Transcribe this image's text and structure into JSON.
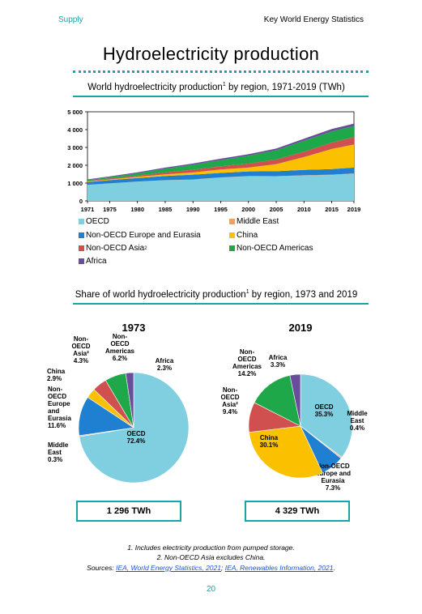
{
  "header": {
    "left": "Supply",
    "right": "Key World Energy Statistics"
  },
  "page_title": "Hydroelectricity production",
  "area_subtitle": {
    "main": "World hydroelectricity production",
    "sup": "1",
    "rest": " by region, 1971-2019 (TWh)"
  },
  "pie_subtitle": {
    "main": "Share of world hydroelectricity production",
    "sup": "1",
    "rest": " by region, 1973 and 2019"
  },
  "colors": {
    "teal": "#1aa3a8",
    "oecd": "#7fcfe0",
    "middle_east": "#f0a060",
    "non_oecd_europe": "#1f7fd0",
    "china": "#fbc000",
    "non_oecd_asia": "#d05050",
    "non_oecd_americas": "#1fa84a",
    "africa": "#6a4c9c"
  },
  "chart_data": [
    {
      "type": "area",
      "title": "World hydroelectricity production¹ by region, 1971-2019 (TWh)",
      "x_ticks": [
        "1971",
        "1975",
        "1980",
        "1985",
        "1990",
        "1995",
        "2000",
        "2005",
        "2010",
        "2015",
        "2019"
      ],
      "y_ticks": [
        "0",
        "1 000",
        "2 000",
        "3 000",
        "4 000",
        "5 000"
      ],
      "ylim": [
        0,
        5000
      ],
      "x": [
        1971,
        1975,
        1980,
        1985,
        1990,
        1995,
        2000,
        2005,
        2010,
        2015,
        2019
      ],
      "series": [
        {
          "name": "OECD",
          "values": [
            900,
            980,
            1080,
            1160,
            1190,
            1310,
            1380,
            1370,
            1420,
            1450,
            1520
          ]
        },
        {
          "name": "Middle East",
          "values": [
            3,
            4,
            5,
            7,
            9,
            11,
            12,
            15,
            19,
            22,
            17
          ]
        },
        {
          "name": "Non-OECD Europe and Eurasia",
          "values": [
            150,
            180,
            200,
            230,
            270,
            250,
            260,
            280,
            300,
            310,
            330
          ]
        },
        {
          "name": "China",
          "values": [
            30,
            40,
            60,
            90,
            130,
            190,
            220,
            400,
            720,
            1130,
            1300
          ]
        },
        {
          "name": "Non-OECD Asia²",
          "values": [
            40,
            50,
            70,
            110,
            150,
            180,
            220,
            260,
            300,
            360,
            410
          ]
        },
        {
          "name": "Non-OECD Americas",
          "values": [
            50,
            80,
            130,
            210,
            280,
            350,
            450,
            520,
            620,
            630,
            620
          ]
        },
        {
          "name": "Africa",
          "values": [
            30,
            40,
            55,
            60,
            70,
            80,
            80,
            90,
            110,
            130,
            140
          ]
        }
      ],
      "legend": {
        "placement": "bottom",
        "columns": 2
      }
    },
    {
      "type": "pie",
      "title": "1973",
      "slices": [
        {
          "name": "OECD",
          "label": [
            "OECD",
            "72.4%"
          ],
          "value": 72.4
        },
        {
          "name": "Middle East",
          "label": [
            "Middle",
            "East",
            "0.3%"
          ],
          "value": 0.3
        },
        {
          "name": "Non-OECD Europe and Eurasia",
          "label": [
            "Non-",
            "OECD",
            "Europe",
            "and",
            "Eurasia",
            "11.6%"
          ],
          "value": 11.6
        },
        {
          "name": "China",
          "label": [
            "China",
            "2.9%"
          ],
          "value": 2.9
        },
        {
          "name": "Non-OECD Asia²",
          "label": [
            "Non-",
            "OECD",
            "Asia²",
            "4.3%"
          ],
          "value": 4.3
        },
        {
          "name": "Non-OECD Americas",
          "label": [
            "Non-",
            "OECD",
            "Americas",
            "6.2%"
          ],
          "value": 6.2
        },
        {
          "name": "Africa",
          "label": [
            "Africa",
            "2.3%"
          ],
          "value": 2.3
        }
      ],
      "total": "1 296 TWh"
    },
    {
      "type": "pie",
      "title": "2019",
      "slices": [
        {
          "name": "OECD",
          "label": [
            "OECD",
            "35.3%"
          ],
          "value": 35.3
        },
        {
          "name": "Middle East",
          "label": [
            "Middle",
            "East",
            "0.4%"
          ],
          "value": 0.4
        },
        {
          "name": "Non-OECD Europe and Eurasia",
          "label": [
            "Non-OECD",
            "Europe and",
            "Eurasia",
            "7.3%"
          ],
          "value": 7.3
        },
        {
          "name": "China",
          "label": [
            "China",
            "30.1%"
          ],
          "value": 30.1
        },
        {
          "name": "Non-OECD Asia²",
          "label": [
            "Non-",
            "OECD",
            "Asia²",
            "9.4%"
          ],
          "value": 9.4
        },
        {
          "name": "Non-OECD Americas",
          "label": [
            "Non-",
            "OECD",
            "Americas",
            "14.2%"
          ],
          "value": 14.2
        },
        {
          "name": "Africa",
          "label": [
            "Africa",
            "3.3%"
          ],
          "value": 3.3
        }
      ],
      "total": "4 329 TWh"
    }
  ],
  "legend_items": [
    {
      "label": "OECD",
      "sup": ""
    },
    {
      "label": "Middle East",
      "sup": ""
    },
    {
      "label": "Non-OECD Europe and Eurasia",
      "sup": ""
    },
    {
      "label": "China",
      "sup": ""
    },
    {
      "label": "Non-OECD Asia",
      "sup": "2"
    },
    {
      "label": "Non-OECD Americas",
      "sup": ""
    },
    {
      "label": "Africa",
      "sup": ""
    }
  ],
  "footnotes": {
    "n1": "1. Includes electricity production from pumped storage.",
    "n2": "2. Non-OECD Asia excludes China.",
    "sources_label": "Sources: ",
    "src1": "IEA, World Energy Statistics, 2021",
    "sep": "; ",
    "src2": "IEA, Renewables Information, 2021",
    "end": "."
  },
  "page_number": "20"
}
